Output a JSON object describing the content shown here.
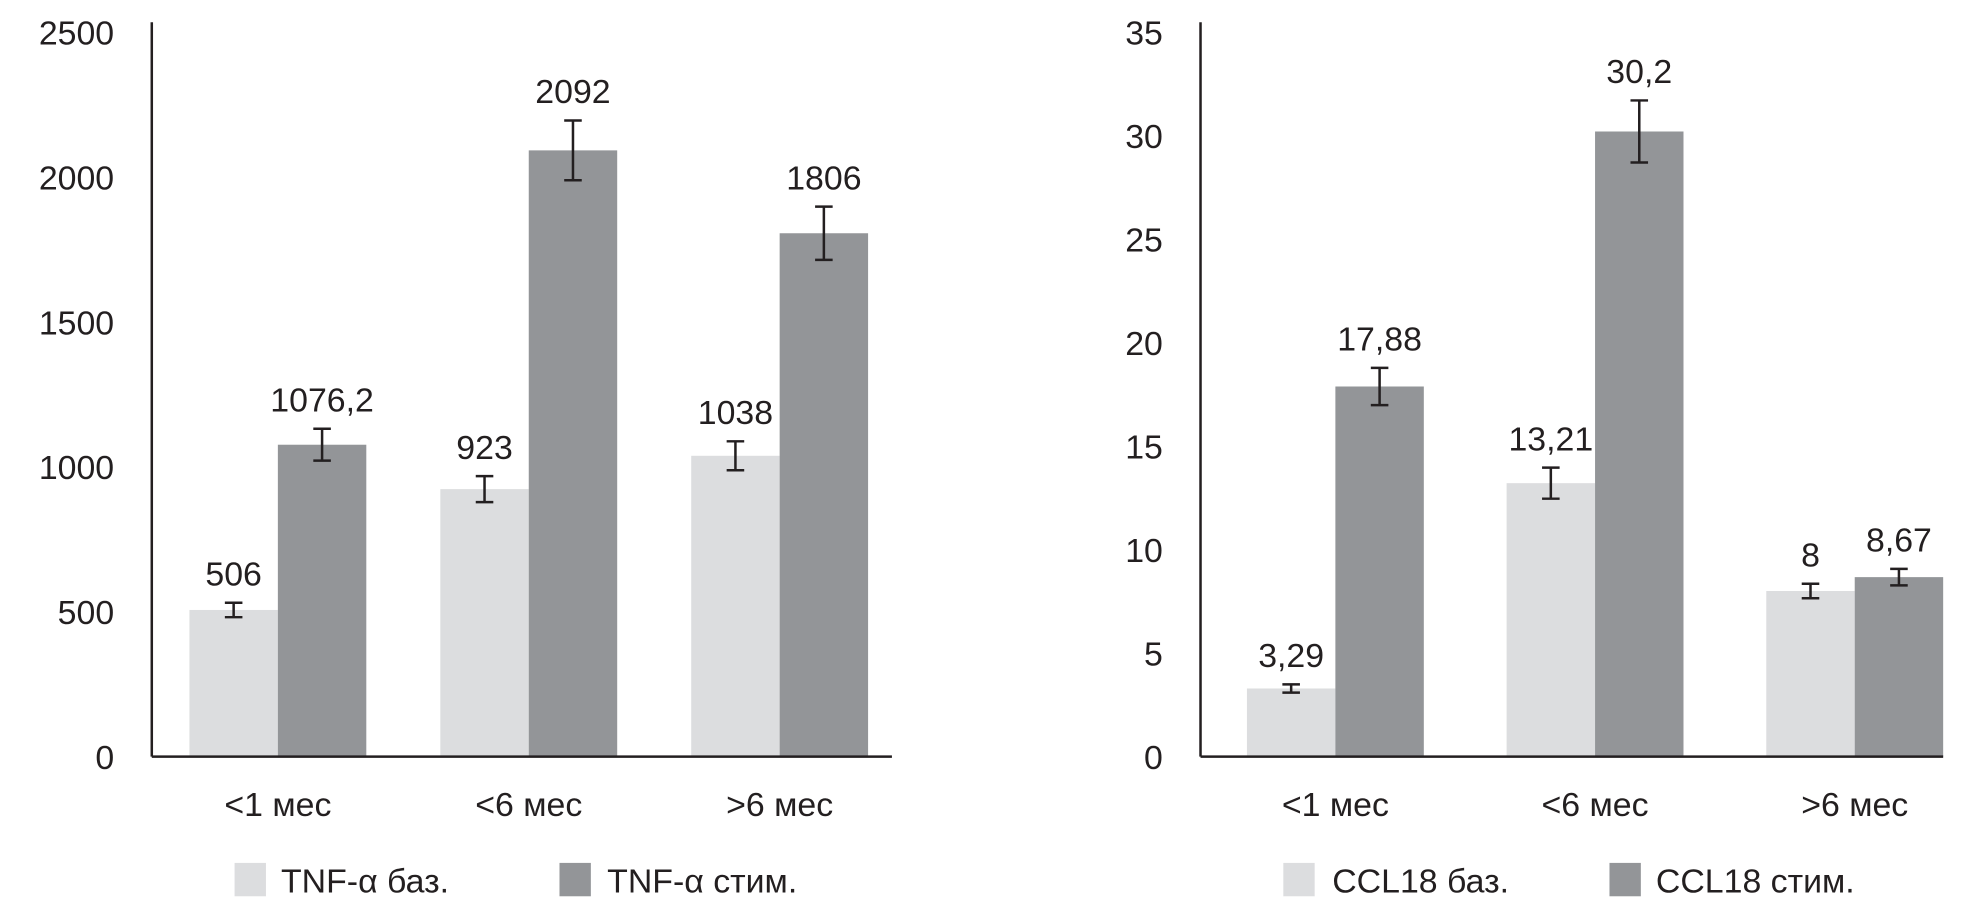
{
  "colors": {
    "base": "#dcdddf",
    "stim": "#939598",
    "axis": "#231f20"
  },
  "chart_data": [
    {
      "type": "bar",
      "title": "",
      "xlabel": "",
      "ylabel": "",
      "ylim": [
        0,
        2500
      ],
      "yticks": [
        0,
        500,
        1000,
        1500,
        2000,
        2500
      ],
      "ytick_labels": [
        "0",
        "500",
        "1000",
        "1500",
        "2000",
        "2500"
      ],
      "categories": [
        "<1 мес",
        "<6 мес",
        ">6 мес"
      ],
      "legend_position": "bottom",
      "series": [
        {
          "name": "TNF-α баз.",
          "values": [
            506,
            923,
            1038
          ],
          "labels": [
            "506",
            "923",
            "1038"
          ],
          "errors": [
            25,
            45,
            50
          ]
        },
        {
          "name": "TNF-α стим.",
          "values": [
            1076.2,
            2092,
            1806
          ],
          "labels": [
            "1076,2",
            "2092",
            "1806"
          ],
          "errors": [
            55,
            103,
            92
          ]
        }
      ]
    },
    {
      "type": "bar",
      "title": "",
      "xlabel": "",
      "ylabel": "",
      "ylim": [
        0,
        35
      ],
      "yticks": [
        0,
        5,
        10,
        15,
        20,
        25,
        30,
        35
      ],
      "ytick_labels": [
        "0",
        "5",
        "10",
        "15",
        "20",
        "25",
        "30",
        "35"
      ],
      "categories": [
        "<1 мес",
        "<6 мес",
        ">6 мес"
      ],
      "legend_position": "bottom",
      "series": [
        {
          "name": "CCL18 баз.",
          "values": [
            3.29,
            13.21,
            8
          ],
          "labels": [
            "3,29",
            "13,21",
            "8"
          ],
          "errors": [
            0.2,
            0.75,
            0.35
          ]
        },
        {
          "name": "CCL18 стим.",
          "values": [
            17.88,
            30.2,
            8.67
          ],
          "labels": [
            "17,88",
            "30,2",
            "8,67"
          ],
          "errors": [
            0.9,
            1.5,
            0.4
          ]
        }
      ]
    }
  ]
}
